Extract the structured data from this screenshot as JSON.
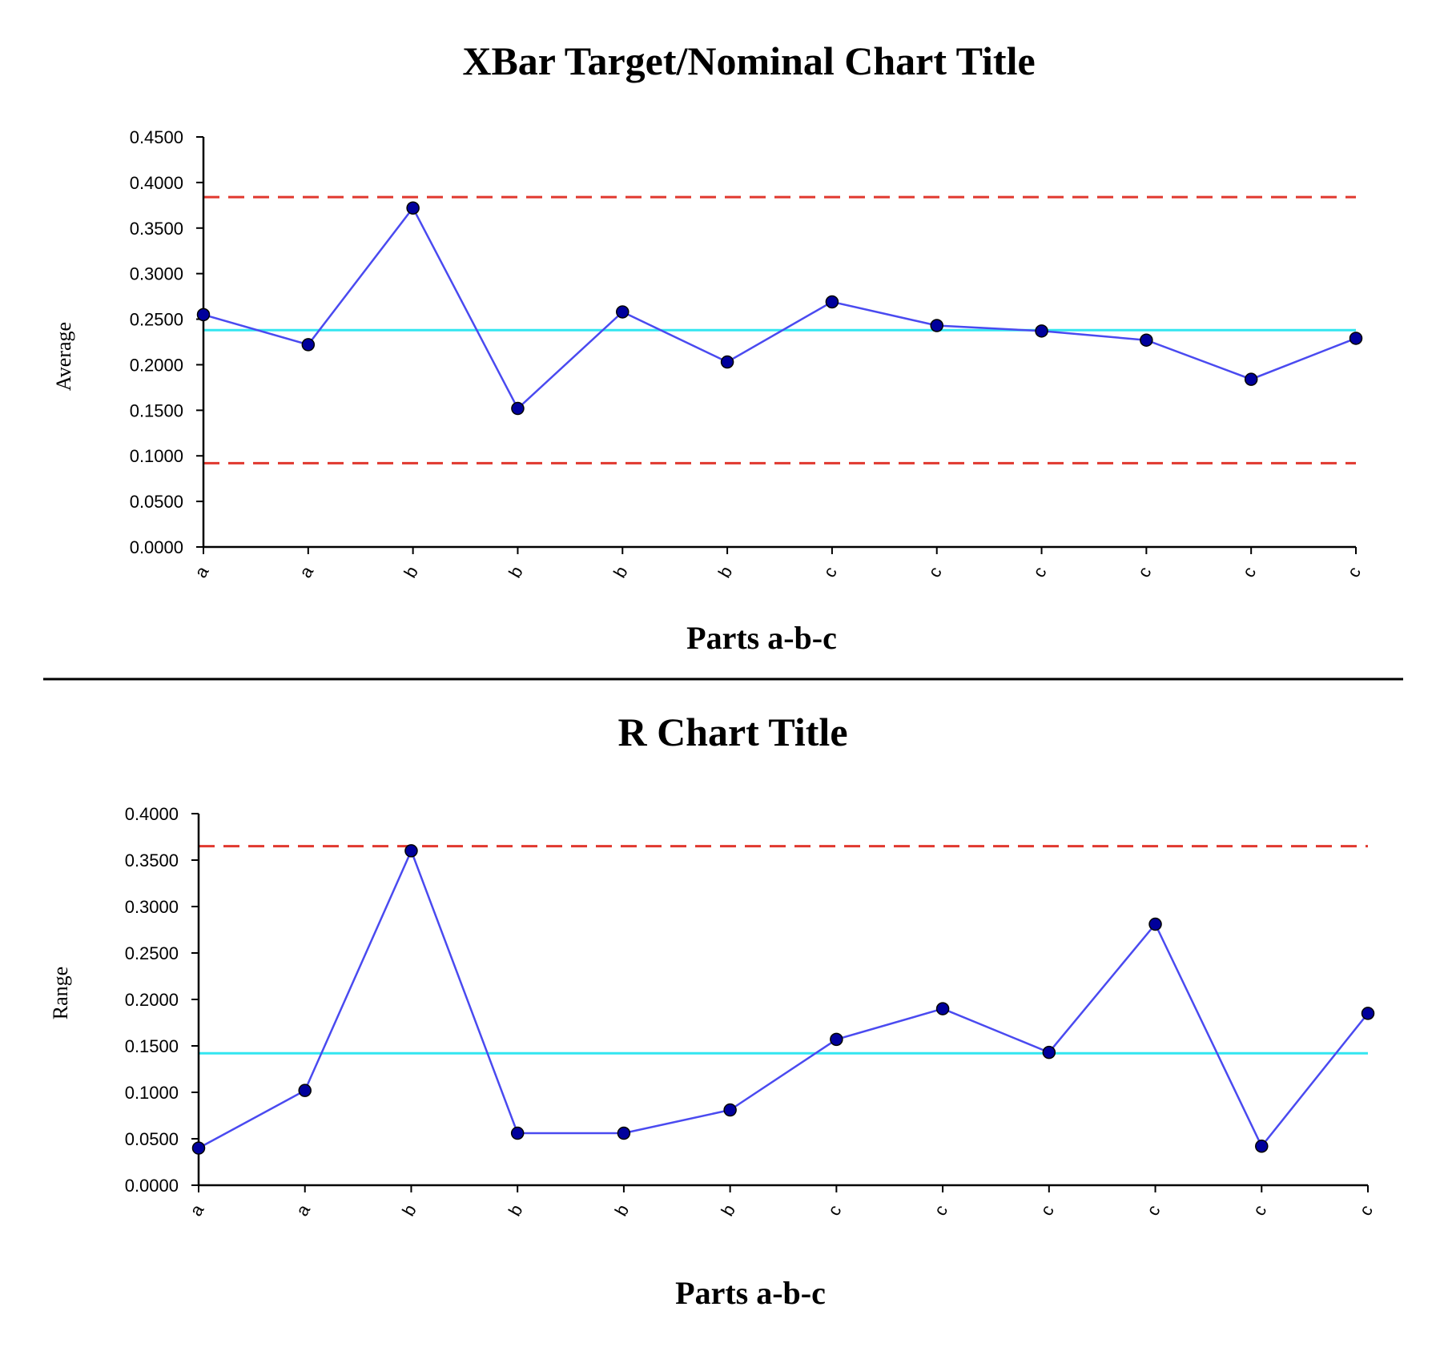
{
  "chart_data": [
    {
      "type": "line",
      "title": "XBar Target/Nominal Chart Title",
      "xlabel": "Parts a-b-c",
      "ylabel": "Average",
      "ylim": [
        0,
        0.45
      ],
      "yticks": [
        "0.0000",
        "0.0500",
        "0.1000",
        "0.1500",
        "0.2000",
        "0.2500",
        "0.3000",
        "0.3500",
        "0.4000",
        "0.4500"
      ],
      "categories": [
        "a",
        "a",
        "b",
        "b",
        "b",
        "b",
        "c",
        "c",
        "c",
        "c",
        "c",
        "c"
      ],
      "series": [
        {
          "name": "Average",
          "values": [
            0.255,
            0.222,
            0.372,
            0.152,
            0.258,
            0.203,
            0.269,
            0.243,
            0.237,
            0.227,
            0.184,
            0.229
          ]
        }
      ],
      "reference_lines": {
        "ucl": 0.384,
        "center": 0.238,
        "lcl": 0.092
      },
      "colors": {
        "series": "#4a4af0",
        "marker": "#00009c",
        "center": "#33e6f0",
        "limits": "#e0382e",
        "axis": "#000000"
      },
      "grid": false
    },
    {
      "type": "line",
      "title": "R Chart Title",
      "xlabel": "Parts a-b-c",
      "ylabel": "Range",
      "ylim": [
        0,
        0.4
      ],
      "yticks": [
        "0.0000",
        "0.0500",
        "0.1000",
        "0.1500",
        "0.2000",
        "0.2500",
        "0.3000",
        "0.3500",
        "0.4000"
      ],
      "categories": [
        "a",
        "a",
        "b",
        "b",
        "b",
        "b",
        "c",
        "c",
        "c",
        "c",
        "c",
        "c"
      ],
      "series": [
        {
          "name": "Range",
          "values": [
            0.04,
            0.102,
            0.36,
            0.056,
            0.056,
            0.081,
            0.157,
            0.19,
            0.143,
            0.281,
            0.042,
            0.185
          ]
        }
      ],
      "reference_lines": {
        "ucl": 0.365,
        "center": 0.142
      },
      "colors": {
        "series": "#4a4af0",
        "marker": "#00009c",
        "center": "#33e6f0",
        "limits": "#e0382e",
        "axis": "#000000"
      },
      "grid": false
    }
  ]
}
